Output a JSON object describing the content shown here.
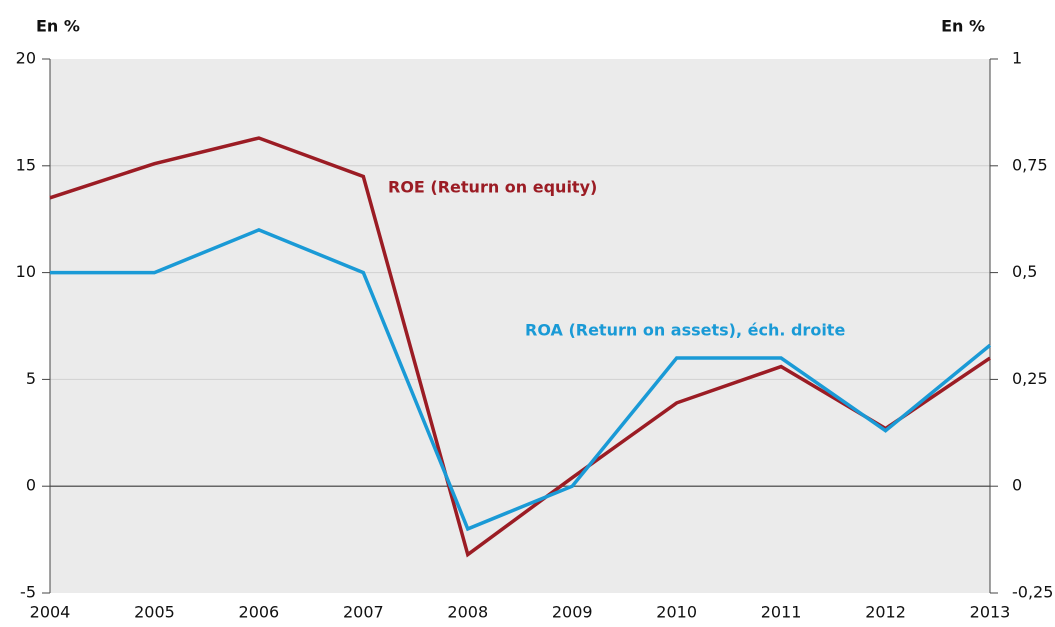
{
  "chart_data": {
    "type": "line",
    "y_label": "En %",
    "y2_label": "En %",
    "categories": [
      "2004",
      "2005",
      "2006",
      "2007",
      "2008",
      "2009",
      "2010",
      "2011",
      "2012",
      "2013"
    ],
    "series": [
      {
        "name": "ROE (Return on equity)",
        "color": "#9b1c24",
        "values": [
          13.5,
          15.1,
          16.3,
          14.5,
          -3.2,
          0.4,
          3.9,
          5.6,
          2.7,
          6.0
        ]
      },
      {
        "name": "ROA (Return on assets), éch. droite",
        "color": "#1a9ad6",
        "axis": "y2",
        "values": [
          0.5,
          0.5,
          0.6,
          0.5,
          -0.1,
          0,
          0.3,
          0.3,
          0.13,
          0.33
        ]
      }
    ],
    "ylim": [
      -5,
      20
    ],
    "yticks": [
      -5,
      0,
      5,
      10,
      15,
      20
    ],
    "y2lim": [
      -0.25,
      1
    ],
    "y2ticks": [
      {
        "value": -0.25,
        "label": "-0,25"
      },
      0,
      {
        "value": 0.25,
        "label": "0,25"
      },
      {
        "value": 0.5,
        "label": "0,5"
      },
      {
        "value": 0.75,
        "label": "0,75"
      },
      1
    ],
    "grid": true
  }
}
